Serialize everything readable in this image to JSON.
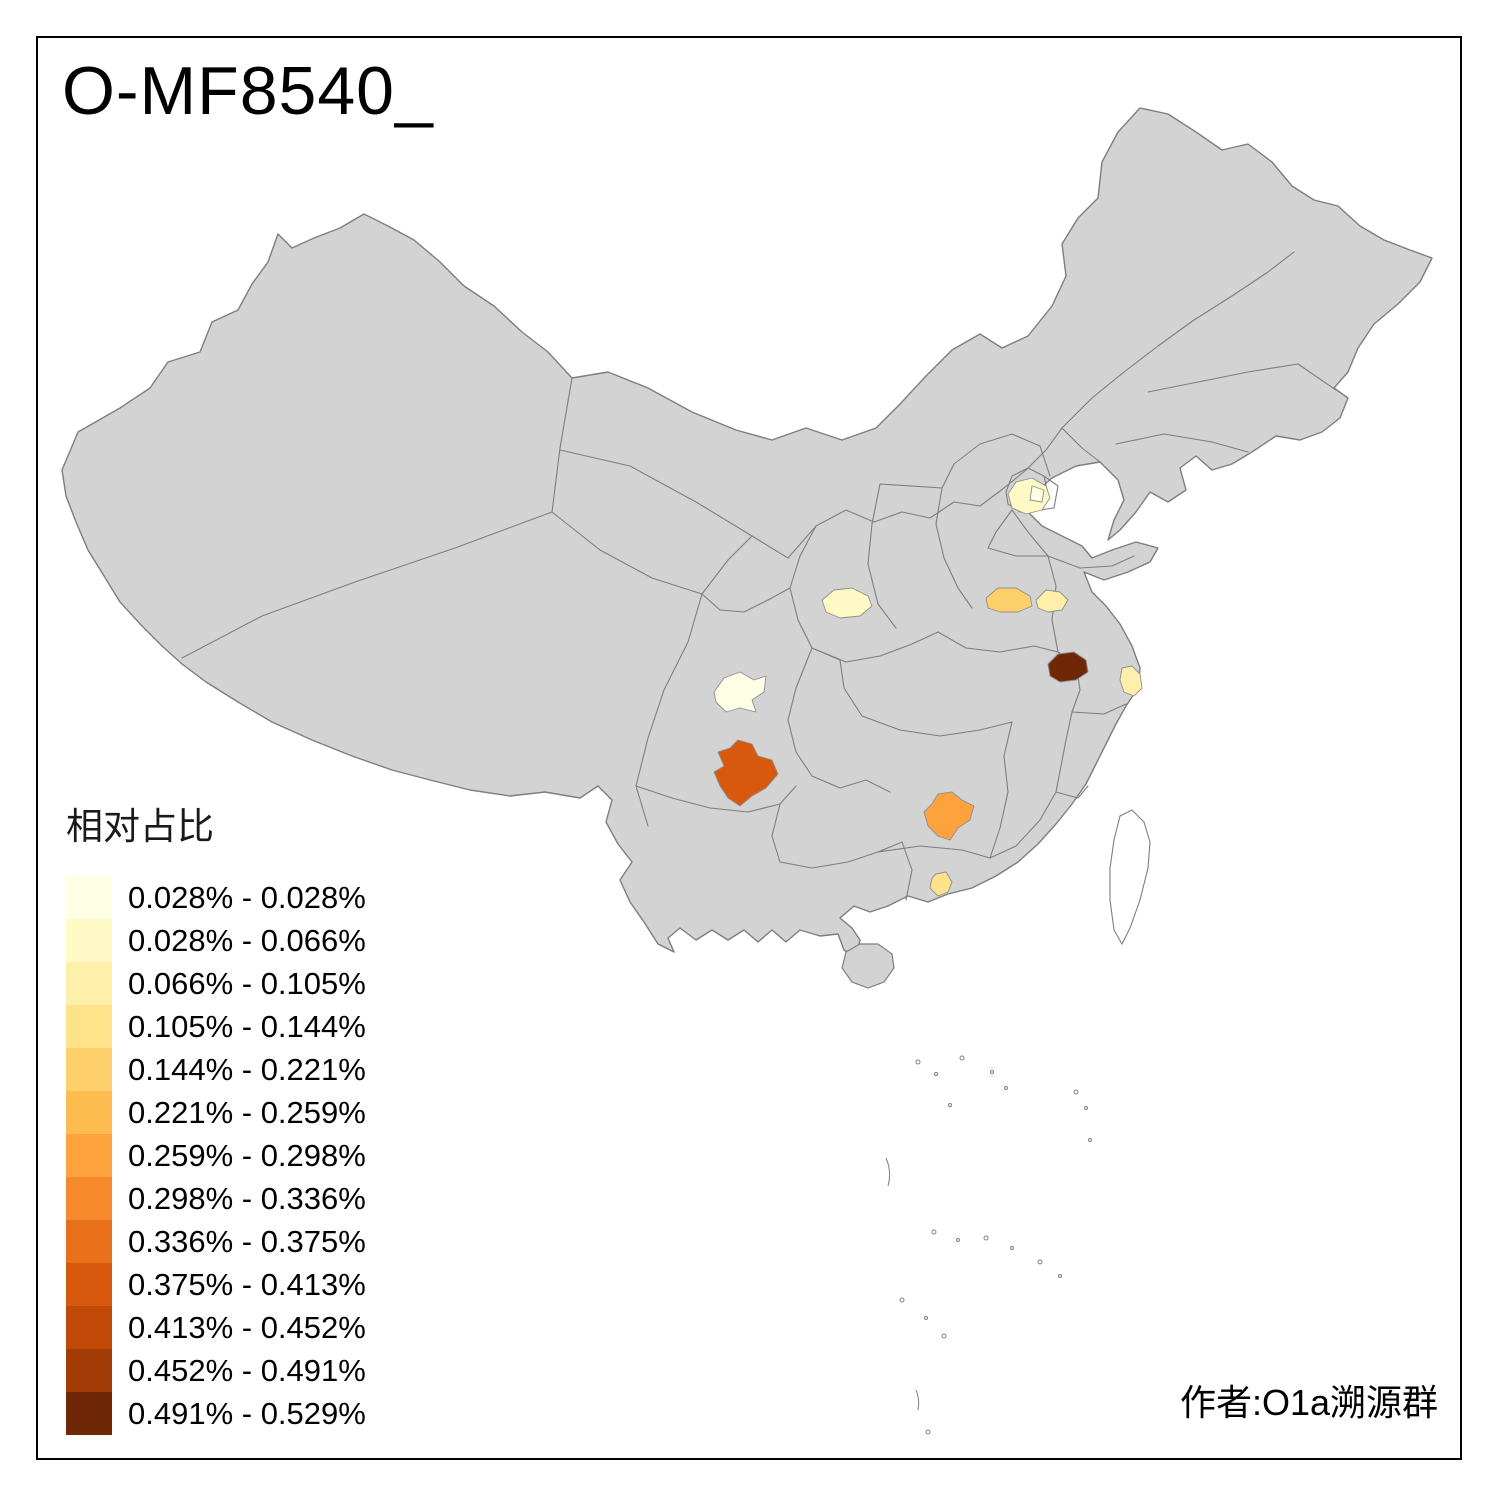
{
  "title": "O-MF8540_",
  "caption": "作者:O1a溯源群",
  "legend": {
    "title": "相对占比",
    "classes": [
      {
        "range": "0.028% - 0.028%",
        "color": "#FFFFE5"
      },
      {
        "range": "0.028% - 0.066%",
        "color": "#FFF9C6"
      },
      {
        "range": "0.066% - 0.105%",
        "color": "#FEF0A9"
      },
      {
        "range": "0.105% - 0.144%",
        "color": "#FEE38B"
      },
      {
        "range": "0.144% - 0.221%",
        "color": "#FED06C"
      },
      {
        "range": "0.221% - 0.259%",
        "color": "#FEBB50"
      },
      {
        "range": "0.259% - 0.298%",
        "color": "#FDA23C"
      },
      {
        "range": "0.298% - 0.336%",
        "color": "#F5892B"
      },
      {
        "range": "0.336% - 0.375%",
        "color": "#E8701A"
      },
      {
        "range": "0.375% - 0.413%",
        "color": "#D8590E"
      },
      {
        "range": "0.413% - 0.452%",
        "color": "#C04908"
      },
      {
        "range": "0.452% - 0.491%",
        "color": "#A23B06"
      },
      {
        "range": "0.491% - 0.529%",
        "color": "#6F2705"
      }
    ]
  },
  "map": {
    "base_fill": "#D3D3D3",
    "border_color": "#7E7E7E",
    "no_data_fill": "#FFFFFF",
    "highlights": [
      {
        "id": "patch-1",
        "approx_location": "north (Beijing-Tianjin area)",
        "color": "#FFF9C6",
        "legend_range": "0.028% - 0.066%"
      },
      {
        "id": "patch-2",
        "approx_location": "north (lighter east part)",
        "color": "#FFFFE5",
        "legend_range": "0.028% - 0.028%"
      },
      {
        "id": "patch-3",
        "approx_location": "central-west",
        "color": "#FFF9C6",
        "legend_range": "0.028% - 0.066%"
      },
      {
        "id": "patch-4",
        "approx_location": "central",
        "color": "#FED06C",
        "legend_range": "0.144% - 0.221%"
      },
      {
        "id": "patch-5",
        "approx_location": "central-east",
        "color": "#FEF0A9",
        "legend_range": "0.066% - 0.105%"
      },
      {
        "id": "patch-6",
        "approx_location": "east (darkest region)",
        "color": "#6F2705",
        "legend_range": "0.491% - 0.529%"
      },
      {
        "id": "patch-7",
        "approx_location": "east coast",
        "color": "#FEF0A9",
        "legend_range": "0.066% - 0.105%"
      },
      {
        "id": "patch-8",
        "approx_location": "southwest basin (palest)",
        "color": "#FFFFE5",
        "legend_range": "0.028% - 0.028%"
      },
      {
        "id": "patch-9",
        "approx_location": "southwest (deep orange)",
        "color": "#D8590E",
        "legend_range": "0.375% - 0.413%"
      },
      {
        "id": "patch-10",
        "approx_location": "south-central (orange)",
        "color": "#FDA23C",
        "legend_range": "0.259% - 0.298%"
      },
      {
        "id": "patch-11",
        "approx_location": "south (small pale)",
        "color": "#FEE38B",
        "legend_range": "0.105% - 0.144%"
      }
    ]
  },
  "chart_data": {
    "type": "choropleth",
    "title": "O-MF8540_",
    "legend_title": "相对占比",
    "unit": "%",
    "breaks": [
      0.028,
      0.028,
      0.066,
      0.105,
      0.144,
      0.221,
      0.259,
      0.298,
      0.336,
      0.375,
      0.413,
      0.452,
      0.491,
      0.529
    ],
    "palette": [
      "#FFFFE5",
      "#FFF9C6",
      "#FEF0A9",
      "#FEE38B",
      "#FED06C",
      "#FEBB50",
      "#FDA23C",
      "#F5892B",
      "#E8701A",
      "#D8590E",
      "#C04908",
      "#A23B06",
      "#6F2705"
    ],
    "regions": [
      {
        "approx_location": "north (Beijing-Tianjin area)",
        "value_range": "0.028% - 0.066%"
      },
      {
        "approx_location": "north (lighter east part)",
        "value_range": "0.028% - 0.028%"
      },
      {
        "approx_location": "central-west",
        "value_range": "0.028% - 0.066%"
      },
      {
        "approx_location": "central",
        "value_range": "0.144% - 0.221%"
      },
      {
        "approx_location": "central-east",
        "value_range": "0.066% - 0.105%"
      },
      {
        "approx_location": "east (darkest region)",
        "value_range": "0.491% - 0.529%"
      },
      {
        "approx_location": "east coast",
        "value_range": "0.066% - 0.105%"
      },
      {
        "approx_location": "southwest basin (palest)",
        "value_range": "0.028% - 0.028%"
      },
      {
        "approx_location": "southwest (deep orange)",
        "value_range": "0.375% - 0.413%"
      },
      {
        "approx_location": "south-central (orange)",
        "value_range": "0.259% - 0.298%"
      },
      {
        "approx_location": "south (small pale)",
        "value_range": "0.105% - 0.144%"
      }
    ]
  }
}
